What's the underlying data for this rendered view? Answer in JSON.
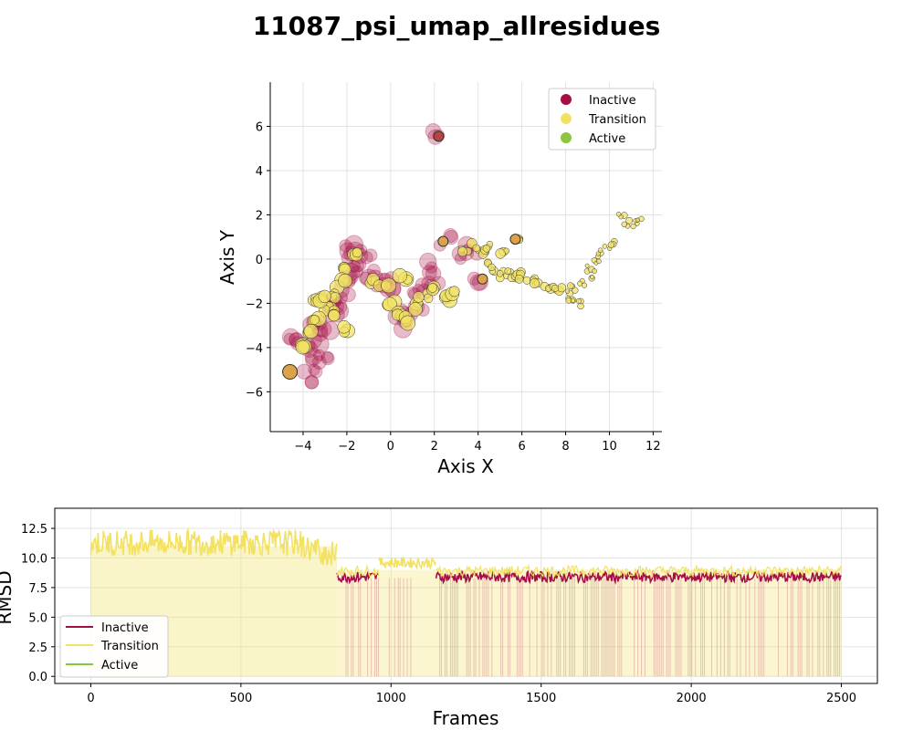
{
  "title": "11087_psi_umap_allresidues",
  "colors": {
    "inactive": "#a50f45",
    "transition": "#f2e163",
    "active": "#8cc63f",
    "ochre": "#dba24a"
  },
  "chart_data": [
    {
      "type": "scatter",
      "xlabel": "Axis X",
      "ylabel": "Axis Y",
      "xlim": [
        -5.5,
        12.4
      ],
      "ylim": [
        -7.8,
        8.0
      ],
      "xticks": [
        -4,
        -2,
        0,
        2,
        4,
        6,
        8,
        10,
        12
      ],
      "yticks": [
        -6,
        -4,
        -2,
        0,
        2,
        4,
        6
      ],
      "grid": true,
      "legend": {
        "placement": "top-right",
        "entries": [
          "Inactive",
          "Transition",
          "Active"
        ]
      },
      "series": [
        {
          "name": "Inactive",
          "points": [
            [
              2.2,
              5.55
            ],
            [
              -1.9,
              0.5
            ],
            [
              -1.4,
              0.4
            ],
            [
              -1.2,
              0.2
            ],
            [
              -1.7,
              -0.2
            ],
            [
              -2.0,
              -0.8
            ],
            [
              -2.2,
              -1.5
            ],
            [
              -2.4,
              -2.1
            ],
            [
              -2.6,
              -2.6
            ],
            [
              -2.9,
              -3.1
            ],
            [
              -3.2,
              -3.6
            ],
            [
              -3.5,
              -4.2
            ],
            [
              -3.7,
              -4.8
            ],
            [
              -3.6,
              -5.3
            ],
            [
              -4.4,
              -3.4
            ],
            [
              -4.0,
              -3.8
            ],
            [
              -0.9,
              -0.6
            ],
            [
              -0.2,
              -0.9
            ],
            [
              0.1,
              -1.6
            ],
            [
              0.3,
              -2.6
            ],
            [
              0.6,
              -2.9
            ],
            [
              1.2,
              -2.4
            ],
            [
              1.0,
              -1.4
            ],
            [
              1.6,
              -1.3
            ],
            [
              2.0,
              -0.9
            ],
            [
              3.3,
              0.3
            ],
            [
              3.7,
              0.5
            ],
            [
              4.1,
              -0.9
            ],
            [
              2.5,
              0.8
            ],
            [
              -0.5,
              -1.1
            ],
            [
              -2.8,
              -1.9
            ],
            [
              -3.4,
              -2.9
            ],
            [
              -1.6,
              -0.5
            ],
            [
              -3.1,
              -4.4
            ],
            [
              1.8,
              -0.4
            ]
          ]
        },
        {
          "name": "Transition",
          "points": [
            [
              -1.6,
              0.3
            ],
            [
              -1.9,
              -0.4
            ],
            [
              -2.3,
              -1.1
            ],
            [
              -2.6,
              -1.7
            ],
            [
              -2.9,
              -2.2
            ],
            [
              -3.3,
              -2.7
            ],
            [
              -3.6,
              -3.2
            ],
            [
              -4.0,
              -3.9
            ],
            [
              -3.4,
              -1.9
            ],
            [
              -2.7,
              -2.4
            ],
            [
              -0.8,
              -0.9
            ],
            [
              -0.3,
              -1.3
            ],
            [
              0.0,
              -2.0
            ],
            [
              0.5,
              -2.5
            ],
            [
              0.9,
              -2.8
            ],
            [
              1.3,
              -2.1
            ],
            [
              1.5,
              -1.6
            ],
            [
              2.1,
              -1.3
            ],
            [
              2.5,
              -1.8
            ],
            [
              2.7,
              -1.6
            ],
            [
              3.4,
              0.4
            ],
            [
              3.8,
              0.6
            ],
            [
              4.2,
              0.3
            ],
            [
              4.4,
              0.5
            ],
            [
              4.6,
              -0.1
            ],
            [
              4.8,
              -0.4
            ],
            [
              5.0,
              -0.7
            ],
            [
              5.3,
              -0.6
            ],
            [
              5.6,
              -0.9
            ],
            [
              5.2,
              0.2
            ],
            [
              5.7,
              1.0
            ],
            [
              5.8,
              -0.7
            ],
            [
              6.1,
              -0.8
            ],
            [
              6.4,
              -0.9
            ],
            [
              6.8,
              -1.0
            ],
            [
              7.1,
              -1.2
            ],
            [
              7.4,
              -1.3
            ],
            [
              7.7,
              -1.4
            ],
            [
              8.0,
              -1.6
            ],
            [
              8.3,
              -1.8
            ],
            [
              8.6,
              -2.0
            ],
            [
              8.4,
              -1.3
            ],
            [
              8.8,
              -1.1
            ],
            [
              9.0,
              -0.7
            ],
            [
              9.2,
              -0.4
            ],
            [
              9.4,
              -0.1
            ],
            [
              9.6,
              0.2
            ],
            [
              9.8,
              0.5
            ],
            [
              10.0,
              0.8
            ],
            [
              10.6,
              1.9
            ],
            [
              10.9,
              1.6
            ],
            [
              11.2,
              1.6
            ],
            [
              11.4,
              1.7
            ],
            [
              0.6,
              -0.9
            ],
            [
              -2.1,
              -3.2
            ],
            [
              -3.0,
              -1.8
            ]
          ]
        },
        {
          "name": "Active",
          "points": []
        }
      ],
      "highlight_points": [
        [
          2.2,
          5.55
        ],
        [
          -4.6,
          -5.1
        ],
        [
          2.4,
          0.8
        ],
        [
          4.2,
          -0.9
        ],
        [
          5.7,
          0.9
        ]
      ]
    },
    {
      "type": "line",
      "xlabel": "Frames",
      "ylabel": "RMSD",
      "xlim": [
        -120,
        2620
      ],
      "ylim": [
        -0.6,
        14.2
      ],
      "xticks": [
        0,
        500,
        1000,
        1500,
        2000,
        2500
      ],
      "yticks": [
        "0.0",
        "2.5",
        "5.0",
        "7.5",
        "10.0",
        "12.5"
      ],
      "grid": true,
      "legend": {
        "placement": "lower-left",
        "entries": [
          "Inactive",
          "Transition",
          "Active"
        ]
      },
      "segments": [
        {
          "state": "Transition",
          "x": [
            0,
            820
          ],
          "baseline": 11.0
        },
        {
          "state": "Inactive",
          "x": [
            820,
            960
          ],
          "baseline": 8.4
        },
        {
          "state": "Transition",
          "x": [
            960,
            1150
          ],
          "baseline": 9.6
        },
        {
          "state": "Inactive",
          "x": [
            1150,
            2500
          ],
          "baseline": 8.4
        }
      ]
    }
  ]
}
